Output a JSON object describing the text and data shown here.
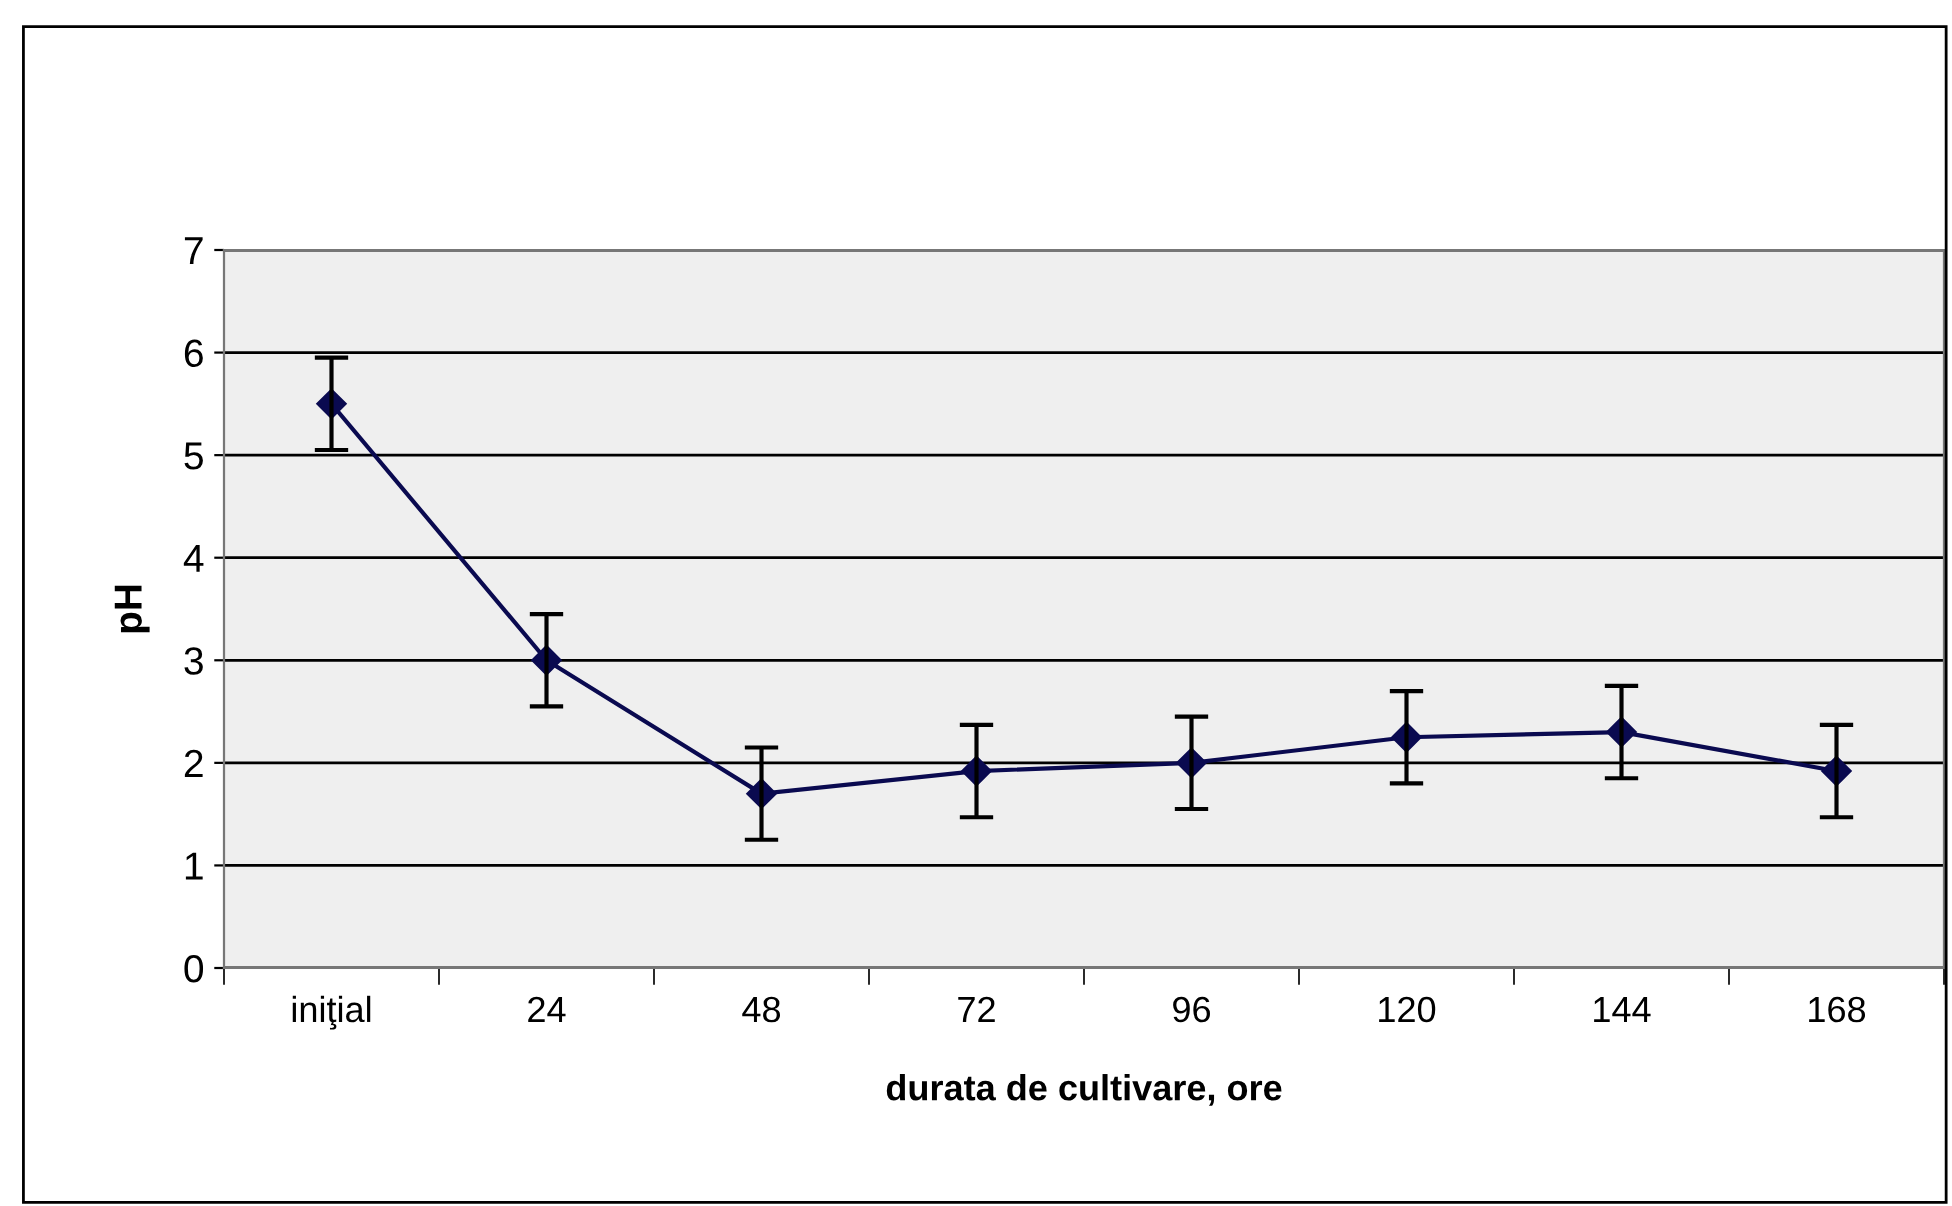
{
  "chart_data": {
    "type": "line",
    "xlabel": "durata de cultivare, ore",
    "ylabel": "pH",
    "categories": [
      "iniţial",
      "24",
      "48",
      "72",
      "96",
      "120",
      "144",
      "168"
    ],
    "series": [
      {
        "color": "#0a0a50",
        "values": [
          5.5,
          3.0,
          1.7,
          1.92,
          2.0,
          2.25,
          2.3,
          1.92
        ],
        "errors": [
          0.45,
          0.45,
          0.45,
          0.45,
          0.45,
          0.45,
          0.45,
          0.45
        ]
      }
    ],
    "ylim": [
      0,
      7
    ],
    "yticks": [
      0,
      1,
      2,
      3,
      4,
      5,
      6,
      7
    ],
    "grid": "y",
    "marker": "diamond",
    "line_style": "solid"
  }
}
